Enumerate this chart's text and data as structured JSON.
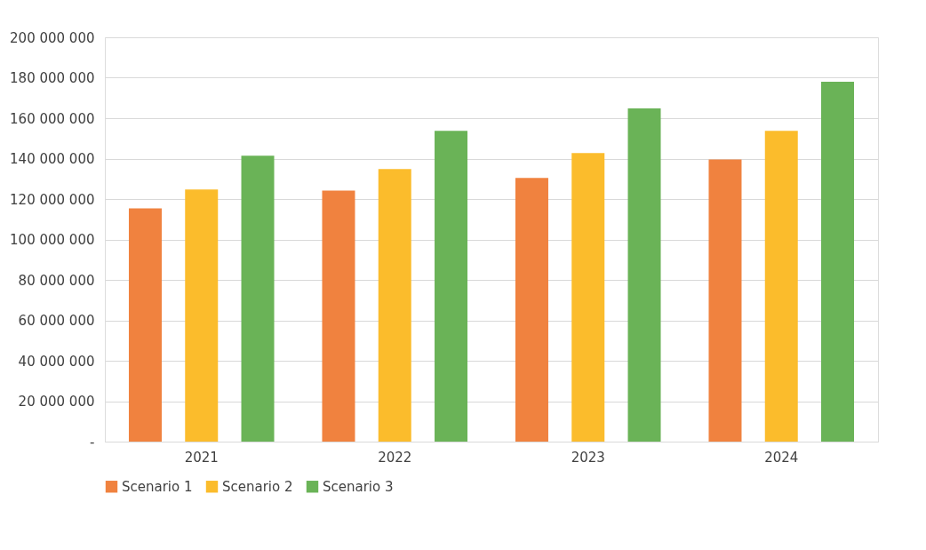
{
  "chart_data": {
    "type": "bar",
    "categories": [
      "2021",
      "2022",
      "2023",
      "2024"
    ],
    "series": [
      {
        "name": "Scenario 1",
        "color": "#f0823f",
        "values": [
          115400000,
          124200000,
          130400000,
          139600000
        ]
      },
      {
        "name": "Scenario 2",
        "color": "#fbbc2c",
        "values": [
          124700000,
          134800000,
          142700000,
          153700000
        ]
      },
      {
        "name": "Scenario 3",
        "color": "#6ab357",
        "values": [
          141400000,
          153700000,
          164800000,
          178000000
        ]
      }
    ],
    "ylim": [
      0,
      200000000
    ],
    "yticks": [
      {
        "value": 0,
        "label": "-"
      },
      {
        "value": 20000000,
        "label": "20 000 000"
      },
      {
        "value": 40000000,
        "label": "40 000 000"
      },
      {
        "value": 60000000,
        "label": "60 000 000"
      },
      {
        "value": 80000000,
        "label": "80 000 000"
      },
      {
        "value": 100000000,
        "label": "100 000 000"
      },
      {
        "value": 120000000,
        "label": "120 000 000"
      },
      {
        "value": 140000000,
        "label": "140 000 000"
      },
      {
        "value": 160000000,
        "label": "160 000 000"
      },
      {
        "value": 180000000,
        "label": "180 000 000"
      },
      {
        "value": 200000000,
        "label": "200 000 000"
      }
    ],
    "grid": "y",
    "legend": "bottom"
  }
}
